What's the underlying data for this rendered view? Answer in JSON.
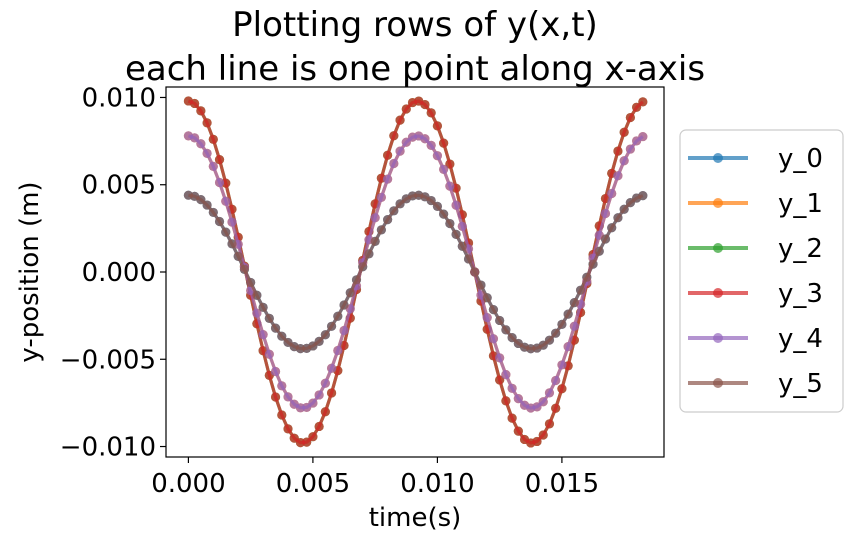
{
  "chart_data": {
    "type": "line",
    "title": [
      "Plotting rows of y(x,t)",
      "each line is one point along x-axis"
    ],
    "xlabel": "time(s)",
    "ylabel": "y-position (m)",
    "xlim": [
      -0.0009,
      0.0191
    ],
    "ylim": [
      -0.0106,
      0.0106
    ],
    "xticks": [
      0.0,
      0.005,
      0.01,
      0.015
    ],
    "xtick_labels": [
      "0.000",
      "0.005",
      "0.010",
      "0.015"
    ],
    "yticks": [
      0.01,
      0.005,
      0.0,
      -0.005,
      -0.01
    ],
    "ytick_labels": [
      "0.010",
      "0.005",
      "0.000",
      "−0.005",
      "−0.010"
    ],
    "grid": false,
    "legend_position": "right, outside plot",
    "x": [
      0.0,
      0.00025,
      0.0005,
      0.00075,
      0.001,
      0.00125,
      0.0015,
      0.00175,
      0.002,
      0.00225,
      0.0025,
      0.00275,
      0.003,
      0.00325,
      0.0035,
      0.00375,
      0.004,
      0.00425,
      0.0045,
      0.00475,
      0.005,
      0.00525,
      0.0055,
      0.00575,
      0.006,
      0.00625,
      0.0065,
      0.00675,
      0.007,
      0.00725,
      0.0075,
      0.00775,
      0.008,
      0.00825,
      0.0085,
      0.00875,
      0.009,
      0.00925,
      0.0095,
      0.00975,
      0.01,
      0.01025,
      0.0105,
      0.01075,
      0.011,
      0.01125,
      0.0115,
      0.01175,
      0.012,
      0.01225,
      0.0125,
      0.01275,
      0.013,
      0.01325,
      0.0135,
      0.01375,
      0.014,
      0.01425,
      0.0145,
      0.01475,
      0.015,
      0.01525,
      0.0155,
      0.01575,
      0.016,
      0.01625,
      0.0165,
      0.01675,
      0.017,
      0.01725,
      0.0175,
      0.01775,
      0.018,
      0.01825
    ],
    "series": [
      {
        "name": "y_0",
        "color": "#1f77b4",
        "amplitude": 0.0044
      },
      {
        "name": "y_1",
        "color": "#ff7f0e",
        "amplitude": 0.0078
      },
      {
        "name": "y_2",
        "color": "#2ca02c",
        "amplitude": 0.0098
      },
      {
        "name": "y_3",
        "color": "#d62728",
        "amplitude": 0.0098
      },
      {
        "name": "y_4",
        "color": "#9467bd",
        "amplitude": 0.0078
      },
      {
        "name": "y_5",
        "color": "#8c564b",
        "amplitude": 0.0044
      }
    ],
    "period": 0.0092,
    "waveform": "amplitude * cos(2*pi*t/period)"
  }
}
